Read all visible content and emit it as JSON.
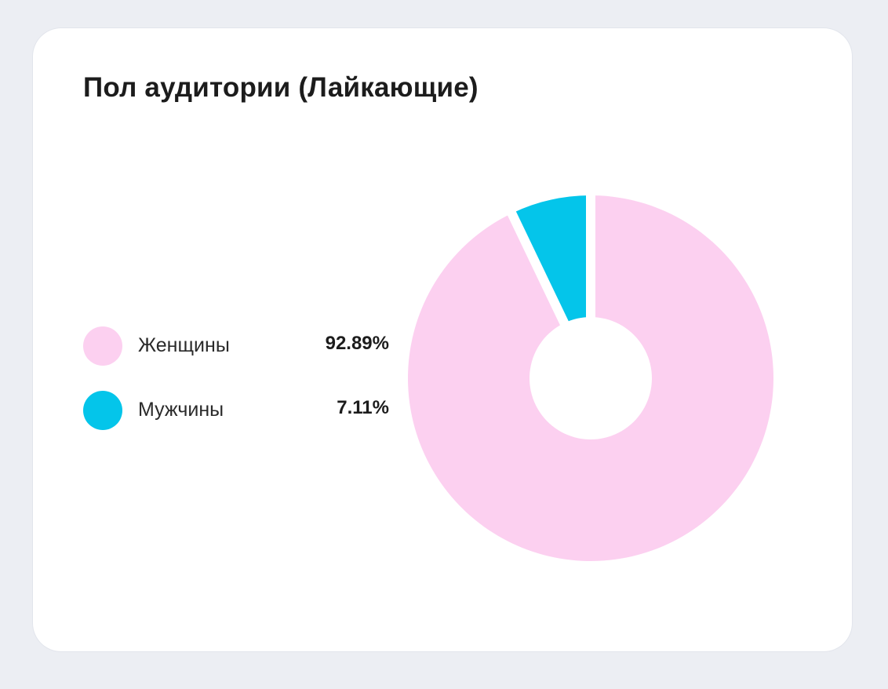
{
  "card": {
    "title": "Пол аудитории (Лайкающие)"
  },
  "chart_data": {
    "type": "pie",
    "title": "Пол аудитории (Лайкающие)",
    "labels": [
      "Женщины",
      "Мужчины"
    ],
    "values": [
      92.89,
      7.11
    ],
    "value_labels": [
      "92.89%",
      "7.11%"
    ],
    "colors": [
      "#fcd0f0",
      "#04c5ea"
    ],
    "donut": true,
    "legend_position": "left"
  }
}
